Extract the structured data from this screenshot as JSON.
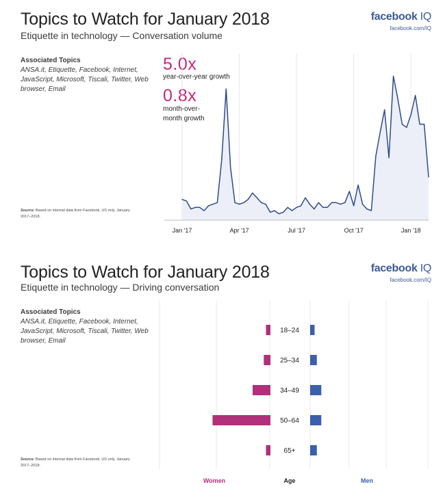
{
  "brand": {
    "name": "facebook",
    "suffix": "IQ",
    "url": "facebook.com/IQ"
  },
  "panel1": {
    "title": "Topics to Watch for January 2018",
    "subtitle": "Etiquette in technology — Conversation volume",
    "associated_title": "Associated Topics",
    "associated_list": "ANSA.it, Etiquette, Facebook, Internet, JavaScript, Microsoft, Tiscali, Twitter, Web browser, Email",
    "yoy_value": "5.0x",
    "yoy_label": "year-over-year growth",
    "mom_value": "0.8x",
    "mom_label": "month-over-month growth",
    "source_bold": "Source:",
    "source_text": "Based on internal data from Facebook, US only. January 2017–2018."
  },
  "panel2": {
    "title": "Topics to Watch for January 2018",
    "subtitle": "Etiquette in technology — Driving conversation",
    "associated_title": "Associated Topics",
    "associated_list": "ANSA.it, Etiquette, Facebook, Internet, JavaScript, Microsoft, Tiscali, Twitter, Web browser, Email",
    "source_bold": "Source:",
    "source_text": "Based on internal data from Facebook, US only. January 2017–2018."
  },
  "colors": {
    "accent": "#c42a7a",
    "brand": "#3b5998",
    "men": "#3b5fab",
    "women": "#b0307a",
    "line": "#2f4a8a",
    "area": "#eceff7"
  },
  "chart_data": [
    {
      "type": "area",
      "title": "Etiquette in technology — Conversation volume",
      "xlabel": "",
      "ylabel": "",
      "x_ticks": [
        "Jan '17",
        "Apr '17",
        "Jul '17",
        "Oct '17",
        "Jan '18"
      ],
      "x_tick_weeks": [
        0,
        13,
        26,
        39,
        52
      ],
      "x_range": [
        0,
        56
      ],
      "ylim": [
        0,
        100
      ],
      "weeks": [
        0,
        1,
        2,
        3,
        4,
        5,
        6,
        7,
        8,
        9,
        10,
        11,
        12,
        13,
        14,
        15,
        16,
        17,
        18,
        19,
        20,
        21,
        22,
        23,
        24,
        25,
        26,
        27,
        28,
        29,
        30,
        31,
        32,
        33,
        34,
        35,
        36,
        37,
        38,
        39,
        40,
        41,
        42,
        43,
        44,
        45,
        46,
        47,
        48,
        49,
        50,
        51,
        52,
        53,
        54,
        55,
        56
      ],
      "values": [
        13,
        12,
        7,
        8,
        8,
        6,
        9,
        10,
        11,
        38,
        82,
        33,
        11,
        10,
        11,
        13,
        17,
        14,
        11,
        10,
        5,
        6,
        4,
        5,
        8,
        6,
        8,
        9,
        14,
        10,
        7,
        11,
        8,
        8,
        11,
        11,
        10,
        11,
        18,
        9,
        22,
        10,
        7,
        6,
        40,
        55,
        69,
        39,
        90,
        76,
        60,
        58,
        66,
        78,
        60,
        60,
        27
      ]
    },
    {
      "type": "bar",
      "orientation": "horizontal",
      "title": "Etiquette in technology — Driving conversation",
      "categories": [
        "18–24",
        "25–34",
        "34–49",
        "50–64",
        "65+"
      ],
      "series": [
        {
          "name": "Women",
          "values": [
            1,
            1.5,
            4,
            13,
            1
          ]
        },
        {
          "name": "Men",
          "values": [
            1,
            1.5,
            2.5,
            2.5,
            1.5
          ]
        }
      ],
      "xlabel": "Age",
      "legend": [
        "Women",
        "Men"
      ]
    }
  ]
}
